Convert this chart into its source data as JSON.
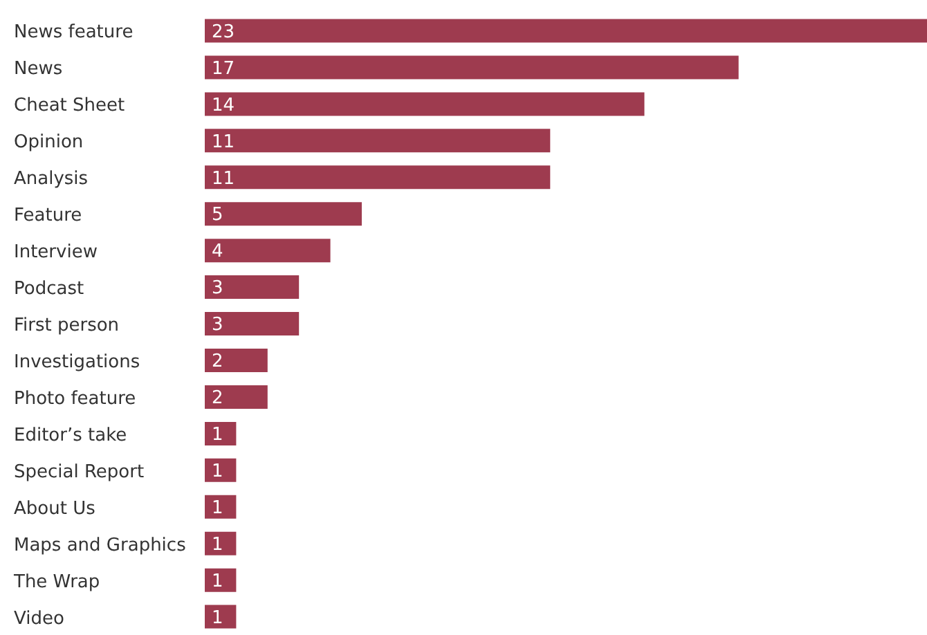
{
  "chart_data": {
    "type": "bar",
    "orientation": "horizontal",
    "data_labels": true,
    "categories": [
      "News feature",
      "News",
      "Cheat Sheet",
      "Opinion",
      "Analysis",
      "Feature",
      "Interview",
      "Podcast",
      "First person",
      "Investigations",
      "Photo feature",
      "Editor’s take",
      "Special Report",
      "About Us",
      "Maps and Graphics",
      "The Wrap",
      "Video"
    ],
    "values": [
      23,
      17,
      14,
      11,
      11,
      5,
      4,
      3,
      3,
      2,
      2,
      1,
      1,
      1,
      1,
      1,
      1
    ],
    "color": "#9e3b4f"
  }
}
